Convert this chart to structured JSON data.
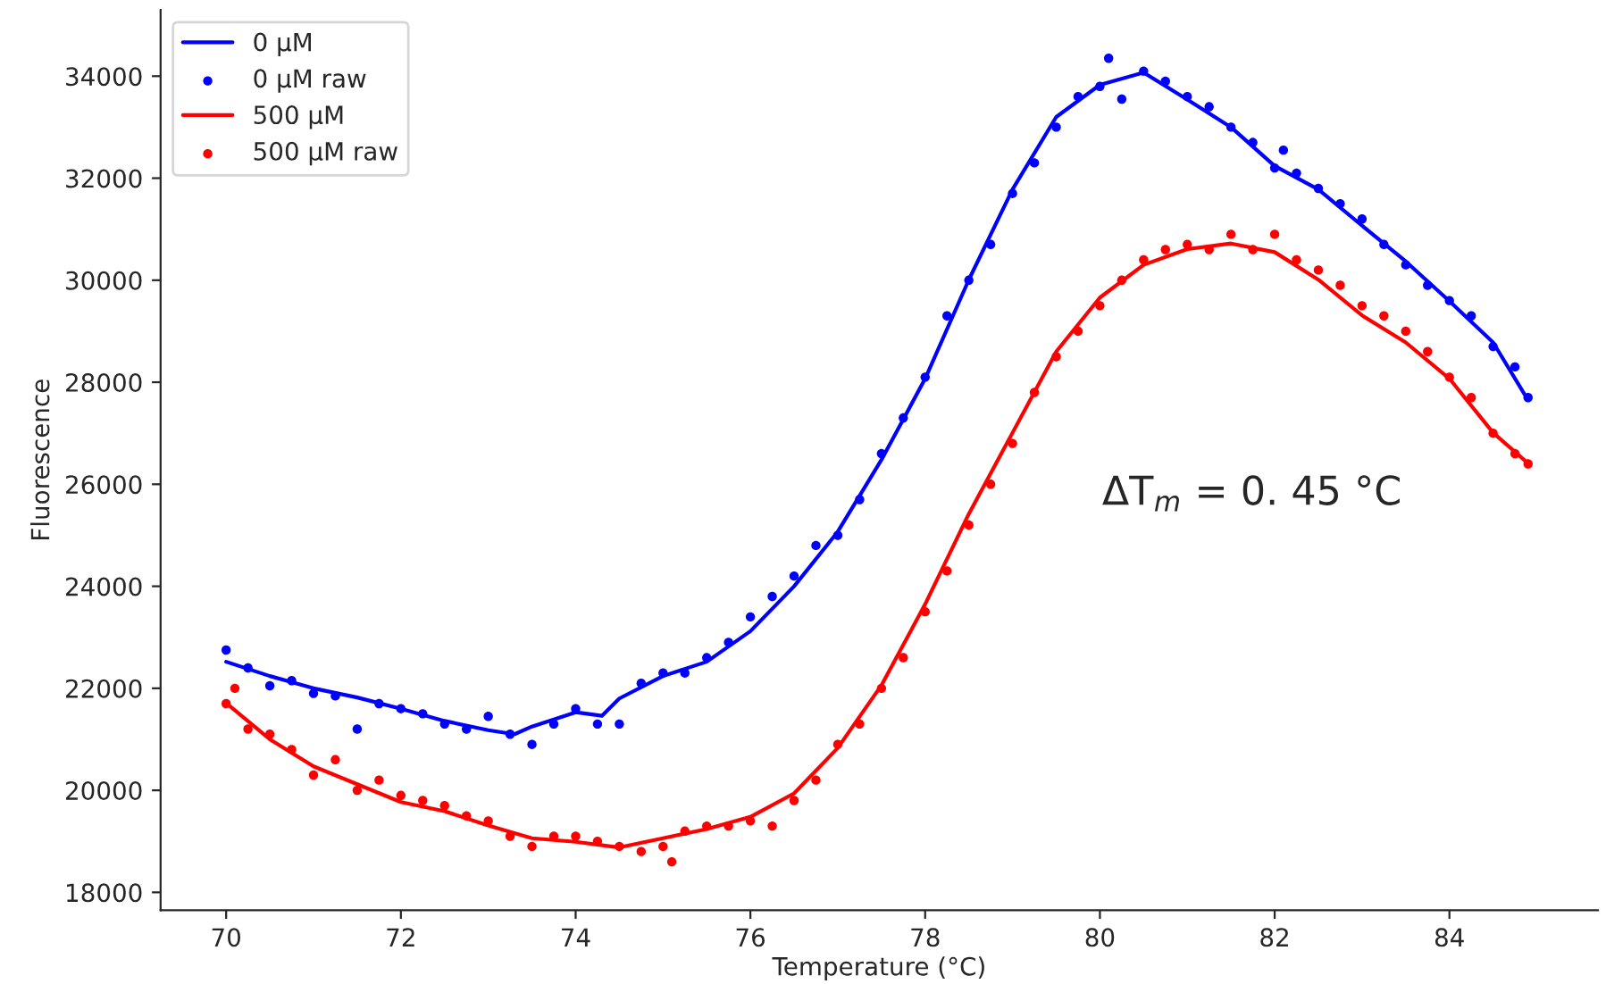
{
  "chart_data": {
    "type": "line",
    "xlabel": "Temperature (°C)",
    "ylabel": "Fluorescence",
    "xlim": [
      69.25,
      85.7
    ],
    "xticks": [
      70,
      72,
      74,
      76,
      78,
      80,
      82,
      84
    ],
    "ylim": [
      17650,
      35300
    ],
    "yticks": [
      18000,
      20000,
      22000,
      24000,
      26000,
      28000,
      30000,
      32000,
      34000
    ],
    "grid": false,
    "legend": "top left",
    "annotations": [
      "ΔT$_{m}$ = 0. 45 °C"
    ],
    "series": [
      {
        "name": "0 µM",
        "color": "#0000ff",
        "line_style": "solid",
        "marker": "none",
        "x": [
          70,
          70.5,
          71,
          71.5,
          72,
          72.5,
          73,
          73.3,
          73.5,
          74,
          74.3,
          74.5,
          75,
          75.5,
          76,
          76.5,
          77,
          77.5,
          78,
          78.5,
          79,
          79.5,
          80,
          80.5,
          81,
          81.5,
          82,
          82.5,
          83,
          83.5,
          84,
          84.5,
          84.9
        ],
        "values": [
          22520,
          22240,
          22000,
          21820,
          21600,
          21360,
          21180,
          21100,
          21250,
          21530,
          21460,
          21800,
          22240,
          22520,
          23120,
          24000,
          25070,
          26480,
          28070,
          30010,
          31780,
          33200,
          33830,
          34070,
          33540,
          33000,
          32240,
          31780,
          31070,
          30370,
          29590,
          28780,
          27650
        ]
      },
      {
        "name": "0 µM raw",
        "type": "scatter",
        "color": "#0000ff",
        "marker": "circle",
        "x": [
          70.0,
          70.25,
          70.5,
          70.75,
          71.0,
          71.25,
          71.5,
          71.75,
          72.0,
          72.25,
          72.5,
          72.75,
          73.0,
          73.25,
          73.5,
          73.75,
          74.0,
          74.25,
          74.5,
          74.75,
          75.0,
          75.25,
          75.5,
          75.75,
          76.0,
          76.25,
          76.5,
          76.75,
          77.0,
          77.25,
          77.5,
          77.75,
          78.0,
          78.25,
          78.5,
          78.75,
          79.0,
          79.25,
          79.5,
          79.75,
          80.0,
          80.1,
          80.25,
          80.5,
          80.75,
          81.0,
          81.25,
          81.5,
          81.75,
          82.0,
          82.1,
          82.25,
          82.5,
          82.75,
          83.0,
          83.25,
          83.5,
          83.75,
          84.0,
          84.25,
          84.5,
          84.75,
          84.9
        ],
        "values": [
          22750,
          22400,
          22050,
          22150,
          21900,
          21850,
          21200,
          21700,
          21600,
          21500,
          21300,
          21200,
          21450,
          21100,
          20900,
          21300,
          21600,
          21300,
          21300,
          22100,
          22300,
          22300,
          22600,
          22900,
          23400,
          23800,
          24200,
          24800,
          25000,
          25700,
          26600,
          27300,
          28100,
          29300,
          30000,
          30700,
          31700,
          32300,
          33000,
          33600,
          33800,
          34350,
          33550,
          34100,
          33900,
          33600,
          33400,
          33000,
          32700,
          32200,
          32550,
          32100,
          31800,
          31500,
          31200,
          30700,
          30300,
          29900,
          29600,
          29300,
          28700,
          28300,
          27700
        ]
      },
      {
        "name": "500 µM",
        "color": "#ff0000",
        "line_style": "solid",
        "marker": "none",
        "x": [
          70,
          70.5,
          71,
          71.5,
          72,
          72.5,
          73,
          73.5,
          74,
          74.5,
          75,
          75.5,
          76,
          76.5,
          77,
          77.5,
          78,
          78.5,
          79,
          79.5,
          80,
          80.5,
          81,
          81.5,
          82,
          82.5,
          83,
          83.5,
          84,
          84.5,
          84.9
        ],
        "values": [
          21710,
          21000,
          20470,
          20120,
          19770,
          19590,
          19310,
          19060,
          18990,
          18880,
          19060,
          19240,
          19480,
          19940,
          20830,
          22060,
          23650,
          25420,
          27010,
          28600,
          29660,
          30300,
          30610,
          30720,
          30550,
          30010,
          29310,
          28780,
          28070,
          27010,
          26410
        ]
      },
      {
        "name": "500 µM raw",
        "type": "scatter",
        "color": "#ff0000",
        "marker": "circle",
        "x": [
          70.0,
          70.1,
          70.25,
          70.5,
          70.75,
          71.0,
          71.25,
          71.5,
          71.75,
          72.0,
          72.25,
          72.5,
          72.75,
          73.0,
          73.25,
          73.5,
          73.75,
          74.0,
          74.25,
          74.5,
          74.75,
          75.0,
          75.1,
          75.25,
          75.5,
          75.75,
          76.0,
          76.25,
          76.5,
          76.75,
          77.0,
          77.25,
          77.5,
          77.75,
          78.0,
          78.25,
          78.5,
          78.75,
          79.0,
          79.25,
          79.5,
          79.75,
          80.0,
          80.25,
          80.5,
          80.75,
          81.0,
          81.25,
          81.5,
          81.75,
          82.0,
          82.25,
          82.5,
          82.75,
          83.0,
          83.25,
          83.5,
          83.75,
          84.0,
          84.25,
          84.5,
          84.75,
          84.9
        ],
        "values": [
          21700,
          22000,
          21200,
          21100,
          20800,
          20300,
          20600,
          20000,
          20200,
          19900,
          19800,
          19700,
          19500,
          19400,
          19100,
          18900,
          19100,
          19100,
          19000,
          18900,
          18800,
          18900,
          18600,
          19200,
          19300,
          19300,
          19400,
          19300,
          19800,
          20200,
          20900,
          21300,
          22000,
          22600,
          23500,
          24300,
          25200,
          26000,
          26800,
          27800,
          28500,
          29000,
          29500,
          30000,
          30400,
          30600,
          30700,
          30600,
          30900,
          30600,
          30900,
          30400,
          30200,
          29900,
          29500,
          29300,
          29000,
          28600,
          28100,
          27700,
          27000,
          26600,
          26400
        ]
      }
    ]
  }
}
